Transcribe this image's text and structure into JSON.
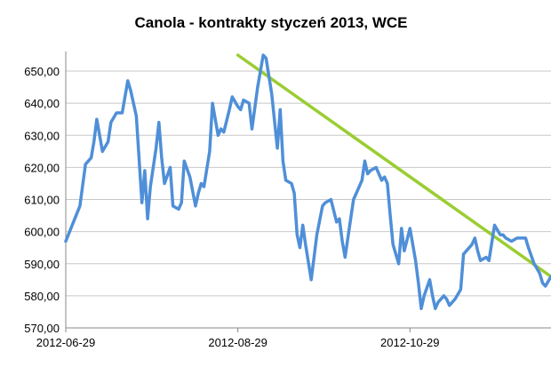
{
  "chart_data": {
    "type": "line",
    "title": "Canola - kontrakty styczeń 2013, WCE",
    "xlabel": "",
    "ylabel": "",
    "ylim": [
      570,
      655
    ],
    "yticks": [
      "570,00",
      "580,00",
      "590,00",
      "600,00",
      "610,00",
      "620,00",
      "630,00",
      "640,00",
      "650,00"
    ],
    "xticks": [
      "2012-06-29",
      "2012-08-29",
      "2012-10-29"
    ],
    "xlim": [
      "2012-06-29",
      "2012-12-18"
    ],
    "grid": "horizontal",
    "legend": "none",
    "colors": {
      "series": "#4f8fd8",
      "trend": "#9acd32",
      "grid": "#c8c8c8",
      "axis": "#888888"
    },
    "series": [
      {
        "x": [
          "2012-06-29",
          "2012-07-04",
          "2012-07-06",
          "2012-07-08",
          "2012-07-09",
          "2012-07-10",
          "2012-07-12",
          "2012-07-14",
          "2012-07-15",
          "2012-07-17",
          "2012-07-19",
          "2012-07-21",
          "2012-07-22",
          "2012-07-24",
          "2012-07-26",
          "2012-07-27",
          "2012-07-28",
          "2012-07-29",
          "2012-07-31",
          "2012-08-01",
          "2012-08-02",
          "2012-08-03",
          "2012-08-05",
          "2012-08-06",
          "2012-08-08",
          "2012-08-09",
          "2012-08-10",
          "2012-08-12",
          "2012-08-14",
          "2012-08-15",
          "2012-08-16",
          "2012-08-17",
          "2012-08-19",
          "2012-08-20",
          "2012-08-22",
          "2012-08-23",
          "2012-08-24",
          "2012-08-26",
          "2012-08-27",
          "2012-08-29",
          "2012-08-30",
          "2012-08-31",
          "2012-09-02",
          "2012-09-03",
          "2012-09-05",
          "2012-09-07",
          "2012-09-08",
          "2012-09-10",
          "2012-09-12",
          "2012-09-13",
          "2012-09-14",
          "2012-09-15",
          "2012-09-17",
          "2012-09-18",
          "2012-09-19",
          "2012-09-20",
          "2012-09-21",
          "2012-09-22",
          "2012-09-24",
          "2012-09-26",
          "2012-09-28",
          "2012-09-29",
          "2012-10-01",
          "2012-10-03",
          "2012-10-04",
          "2012-10-05",
          "2012-10-06",
          "2012-10-07",
          "2012-10-09",
          "2012-10-10",
          "2012-10-12",
          "2012-10-13",
          "2012-10-14",
          "2012-10-15",
          "2012-10-17",
          "2012-10-19",
          "2012-10-20",
          "2012-10-21",
          "2012-10-22",
          "2012-10-23",
          "2012-10-25",
          "2012-10-26",
          "2012-10-27",
          "2012-10-29",
          "2012-10-31",
          "2012-11-01",
          "2012-11-02",
          "2012-11-03",
          "2012-11-05",
          "2012-11-06",
          "2012-11-07",
          "2012-11-08",
          "2012-11-10",
          "2012-11-11",
          "2012-11-12",
          "2012-11-14",
          "2012-11-16",
          "2012-11-17",
          "2012-11-18",
          "2012-11-20",
          "2012-11-21",
          "2012-11-22",
          "2012-11-23",
          "2012-11-25",
          "2012-11-26",
          "2012-11-28",
          "2012-11-30",
          "2012-12-01",
          "2012-12-02",
          "2012-12-04",
          "2012-12-06",
          "2012-12-08",
          "2012-12-09",
          "2012-12-10",
          "2012-12-12",
          "2012-12-14",
          "2012-12-15",
          "2012-12-16",
          "2012-12-18"
        ],
        "values": [
          597,
          608,
          621,
          623,
          628,
          635,
          625,
          628,
          634,
          637,
          637,
          647,
          644,
          636,
          609,
          619,
          604,
          614,
          626,
          634,
          623,
          615,
          620,
          608,
          607,
          609,
          622,
          617,
          608,
          612,
          615,
          614,
          625,
          640,
          630,
          632,
          631,
          638,
          642,
          639,
          638,
          641,
          640,
          632,
          645,
          655,
          654,
          643,
          626,
          638,
          622,
          616,
          615,
          612,
          599,
          595,
          602,
          596,
          585,
          599,
          608,
          609,
          610,
          603,
          604,
          597,
          592,
          598,
          610,
          612,
          616,
          622,
          618,
          619,
          620,
          616,
          617,
          615,
          605,
          596,
          590,
          601,
          594,
          601,
          591,
          584,
          576,
          580,
          585,
          580,
          576,
          578,
          580,
          579,
          577,
          579,
          582,
          593,
          594,
          596,
          598,
          594,
          591,
          592,
          591,
          602,
          599,
          599,
          598,
          597,
          598,
          598,
          598,
          595,
          590,
          587,
          584,
          583,
          586
        ]
      }
    ],
    "trendline": {
      "x": [
        "2012-08-29",
        "2012-12-18"
      ],
      "values": [
        655,
        586
      ]
    }
  }
}
